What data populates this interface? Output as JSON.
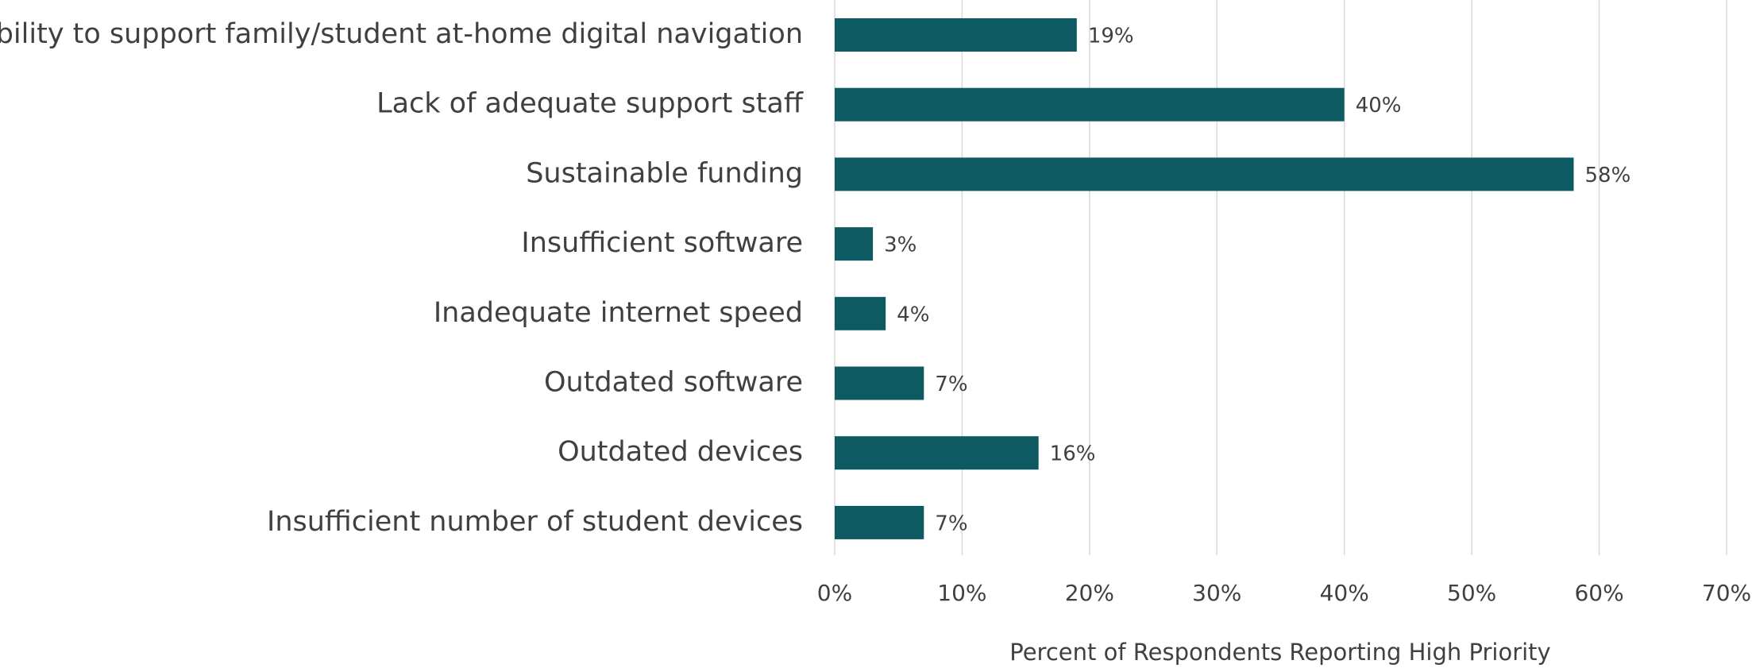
{
  "chart_data": {
    "type": "barh",
    "categories": [
      "Inability to support family/student at-home digital navigation",
      "Lack of adequate support staff",
      "Sustainable funding",
      "Insufficient software",
      "Inadequate internet speed",
      "Outdated software",
      "Outdated devices",
      "Insufficient number of student devices"
    ],
    "values": [
      19,
      40,
      58,
      3,
      4,
      7,
      16,
      7
    ],
    "value_labels": [
      "19%",
      "40%",
      "58%",
      "3%",
      "4%",
      "7%",
      "16%",
      "7%"
    ],
    "color": "#0e5a62",
    "xlabel": "Percent of Respondents Reporting High Priority",
    "xlim": [
      0,
      70
    ],
    "xticks": [
      {
        "value": 0,
        "label": "0%"
      },
      {
        "value": 10,
        "label": "10%"
      },
      {
        "value": 20,
        "label": "20%"
      },
      {
        "value": 30,
        "label": "30%"
      },
      {
        "value": 40,
        "label": "40%"
      },
      {
        "value": 50,
        "label": "50%"
      },
      {
        "value": 60,
        "label": "60%"
      },
      {
        "value": 70,
        "label": "70%"
      }
    ],
    "grid": true
  }
}
